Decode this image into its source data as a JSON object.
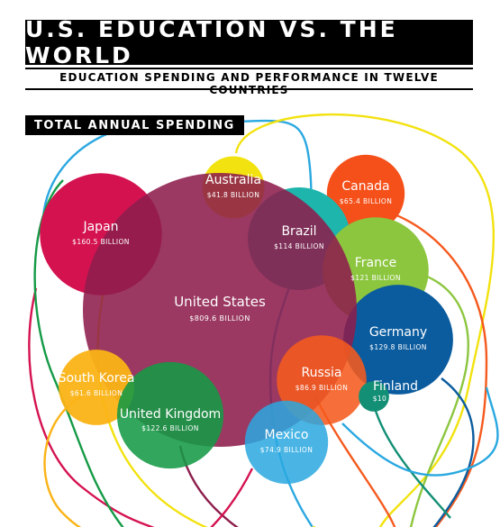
{
  "header": {
    "title": "U.S. EDUCATION VS. THE WORLD",
    "subtitle": "EDUCATION SPENDING AND PERFORMANCE IN TWELVE COUNTRIES"
  },
  "section": {
    "label": "TOTAL ANNUAL SPENDING"
  },
  "chart_data": {
    "type": "bubble",
    "title": "TOTAL ANNUAL SPENDING",
    "unit": "BILLION",
    "series": [
      {
        "name": "United States",
        "value_label": "$809.6 BILLION",
        "value": 809.6,
        "color": "#8d1e4c"
      },
      {
        "name": "Japan",
        "value_label": "$160.5 BILLION",
        "value": 160.5,
        "color": "#d41250"
      },
      {
        "name": "Australia",
        "value_label": "$41.8 BILLION",
        "value": 41.8,
        "color": "#f2e20f"
      },
      {
        "name": "Brazil",
        "value_label": "$114 BILLION",
        "value": 114,
        "color": "#1eb5ad"
      },
      {
        "name": "Canada",
        "value_label": "$65.4 BILLION",
        "value": 65.4,
        "color": "#f5501a"
      },
      {
        "name": "France",
        "value_label": "$121 BILLION",
        "value": 121,
        "color": "#8cc63f"
      },
      {
        "name": "Germany",
        "value_label": "$129.8 BILLION",
        "value": 129.8,
        "color": "#0b5c9e"
      },
      {
        "name": "Finland",
        "value_label": "$10 BILLION",
        "value": 10,
        "color": "#138f75"
      },
      {
        "name": "Russia",
        "value_label": "$86.9 BILLION",
        "value": 86.9,
        "color": "#f55a1e"
      },
      {
        "name": "South Korea",
        "value_label": "$61.6 BILLION",
        "value": 61.6,
        "color": "#fbb316"
      },
      {
        "name": "United Kingdom",
        "value_label": "$122.6 BILLION",
        "value": 122.6,
        "color": "#159a46"
      },
      {
        "name": "Mexico",
        "value_label": "$74.9 BILLION",
        "value": 74.9,
        "color": "#2aa8e0"
      }
    ]
  }
}
